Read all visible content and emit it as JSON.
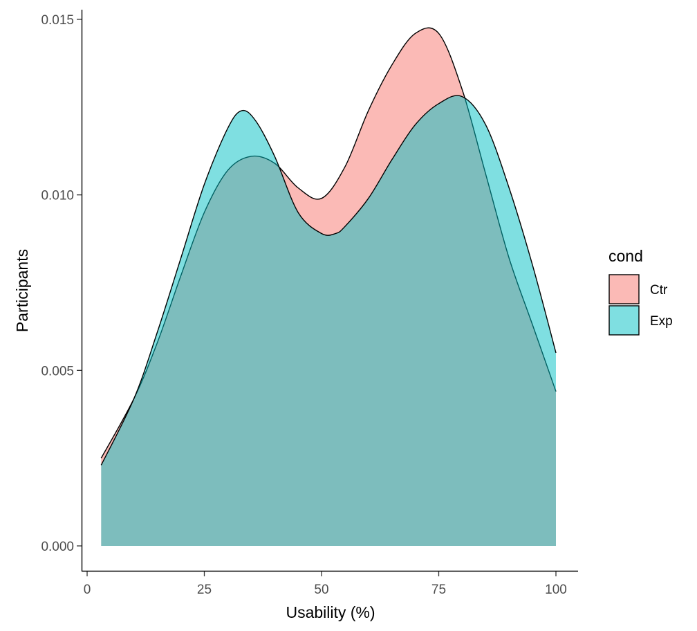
{
  "chart_data": {
    "type": "area",
    "xlabel": "Usability (%)",
    "ylabel": "Participants",
    "xlim": [
      0,
      100
    ],
    "ylim": [
      0,
      0.015
    ],
    "x_ticks": [
      0,
      25,
      50,
      75,
      100
    ],
    "x_tick_labels": [
      "0",
      "25",
      "50",
      "75",
      "100"
    ],
    "y_ticks": [
      0,
      0.005,
      0.01,
      0.015
    ],
    "y_tick_labels": [
      "0.000",
      "0.005",
      "0.010",
      "0.015"
    ],
    "grid": false,
    "legend": {
      "title": "cond",
      "position": "right",
      "entries": [
        "Ctr",
        "Exp"
      ]
    },
    "series": [
      {
        "name": "Ctr",
        "color": "#F8766D",
        "x": [
          3,
          10,
          15,
          20,
          25,
          30,
          35,
          40,
          45,
          50,
          55,
          60,
          65,
          70,
          75,
          80,
          85,
          90,
          95,
          100
        ],
        "values": [
          0.0025,
          0.0042,
          0.0058,
          0.0077,
          0.0095,
          0.0107,
          0.0111,
          0.0109,
          0.0102,
          0.0099,
          0.0108,
          0.0124,
          0.0137,
          0.0146,
          0.0146,
          0.013,
          0.0106,
          0.0082,
          0.0063,
          0.0044
        ]
      },
      {
        "name": "Exp",
        "color": "#00BFC4",
        "x": [
          3,
          10,
          15,
          20,
          25,
          30,
          33,
          36,
          40,
          45,
          50,
          53,
          55,
          60,
          65,
          70,
          75,
          80,
          85,
          90,
          95,
          100
        ],
        "values": [
          0.0023,
          0.0042,
          0.0061,
          0.0082,
          0.0103,
          0.0119,
          0.0124,
          0.0121,
          0.0111,
          0.0095,
          0.0089,
          0.0089,
          0.0091,
          0.0099,
          0.011,
          0.012,
          0.0126,
          0.0128,
          0.012,
          0.0102,
          0.008,
          0.0055
        ]
      }
    ]
  }
}
